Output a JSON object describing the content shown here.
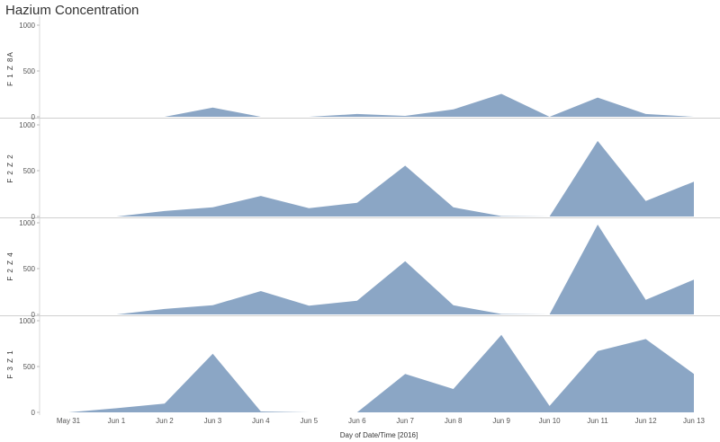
{
  "chart_data": {
    "type": "area",
    "title": "Hazium Concentration",
    "xlabel": "Day of Date/Time [2016]",
    "x": [
      "May 31",
      "Jun 1",
      "Jun 2",
      "Jun 3",
      "Jun 4",
      "Jun 5",
      "Jun 6",
      "Jun 7",
      "Jun 8",
      "Jun 9",
      "Jun 10",
      "Jun 11",
      "Jun 12",
      "Jun 13"
    ],
    "ylim": [
      0,
      1000
    ],
    "yticks": [
      "0",
      "500",
      "1000"
    ],
    "color": "#8ba6c5",
    "panels": [
      {
        "name": "F_1_Z_8A",
        "label": "F 1 Z 8A",
        "values": [
          null,
          null,
          0,
          100,
          0,
          0,
          30,
          10,
          80,
          250,
          0,
          210,
          30,
          0
        ]
      },
      {
        "name": "F_2_Z_2",
        "label": "F 2 Z 2",
        "values": [
          null,
          0,
          60,
          100,
          225,
          90,
          150,
          555,
          100,
          5,
          0,
          825,
          170,
          380
        ]
      },
      {
        "name": "F_2_Z_4",
        "label": "F 2 Z 4",
        "values": [
          null,
          0,
          60,
          100,
          255,
          95,
          150,
          580,
          100,
          5,
          0,
          980,
          160,
          380
        ]
      },
      {
        "name": "F_3_Z_1",
        "label": "F 3 Z 1",
        "values": [
          0,
          45,
          95,
          640,
          10,
          0,
          0,
          420,
          255,
          845,
          70,
          670,
          800,
          420
        ]
      }
    ]
  }
}
